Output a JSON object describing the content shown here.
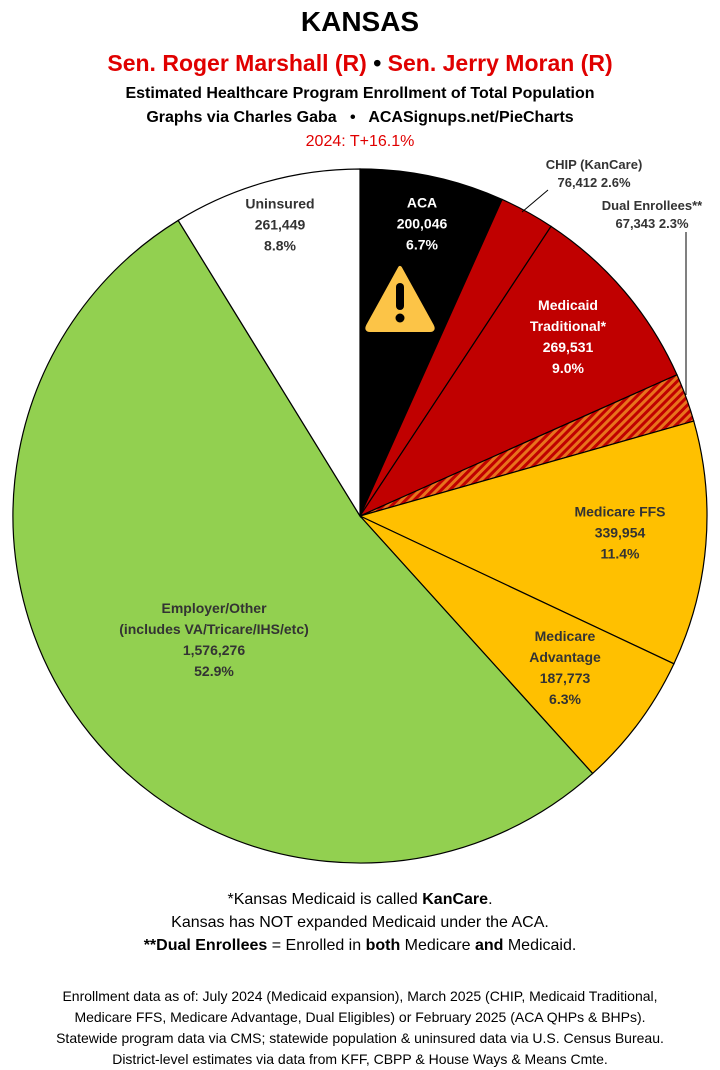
{
  "header": {
    "title": "KANSAS",
    "senator_1": "Sen. Roger Marshall (R)",
    "separator": "•",
    "senator_2": "Sen. Jerry Moran (R)",
    "subtitle": "Estimated Healthcare Program Enrollment of Total Population",
    "credit": "Graphs via Charles Gaba   •   ACASignups.net/PieCharts",
    "margin": "2024: T+16.1%"
  },
  "chart_data": {
    "type": "pie",
    "categories": [
      "ACA",
      "CHIP (KanCare)",
      "Medicaid\nTraditional*",
      "Dual Enrollees**",
      "Medicare FFS",
      "Medicare\nAdvantage",
      "Employer/Other\n(includes VA/Tricare/IHS/etc)",
      "Uninsured"
    ],
    "values": [
      200046,
      76412,
      269531,
      67343,
      339954,
      187773,
      1576276,
      261449
    ],
    "value_labels": [
      "200,046",
      "76,412",
      "269,531",
      "67,343",
      "339,954",
      "187,773",
      "1,576,276",
      "261,449"
    ],
    "percent_labels": [
      "6.7%",
      "2.6%",
      "9.0%",
      "2.3%",
      "11.4%",
      "6.3%",
      "52.9%",
      "8.8%"
    ],
    "colors": [
      "#000000",
      "#c00000",
      "#c00000",
      "#e8721c",
      "#ffc000",
      "#ffc000",
      "#92d050",
      "#ffffff"
    ],
    "hatched": [
      false,
      false,
      false,
      true,
      false,
      false,
      false,
      false
    ]
  },
  "notes": [
    [
      "*Kansas Medicaid is called ",
      "KanCare",
      "."
    ],
    [
      "Kansas has NOT expanded Medicaid under the ACA."
    ],
    [
      "**Dual Enrollees",
      " = Enrolled in ",
      "both",
      " Medicare ",
      "and",
      " Medicaid."
    ]
  ],
  "sources": [
    "Enrollment data as of: July 2024 (Medicaid expansion), March 2025 (CHIP, Medicaid Traditional,",
    "Medicare FFS, Medicare Advantage, Dual Eligibles) or February 2025 (ACA QHPs & BHPs).",
    "Statewide program data via CMS; statewide population & uninsured data via U.S. Census Bureau.",
    "District-level estimates via data from KFF, CBPP & House Ways & Means Cmte."
  ]
}
